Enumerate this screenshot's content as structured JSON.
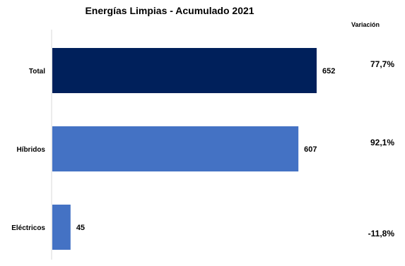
{
  "chart_data": {
    "type": "bar",
    "orientation": "horizontal",
    "title": "Energías  Limpias - Acumulado 2021",
    "categories": [
      "Total",
      "Híbridos",
      "Eléctricos"
    ],
    "values": [
      652,
      607,
      45
    ],
    "value_labels": [
      "652",
      "607",
      "45"
    ],
    "xlim": [
      0,
      652
    ],
    "grid": false,
    "bar_colors": [
      "#00205B",
      "#4472C4",
      "#4472C4"
    ],
    "variation_header": "Variación",
    "variation": [
      "77,7%",
      "92,1%",
      "-11,8%"
    ]
  }
}
